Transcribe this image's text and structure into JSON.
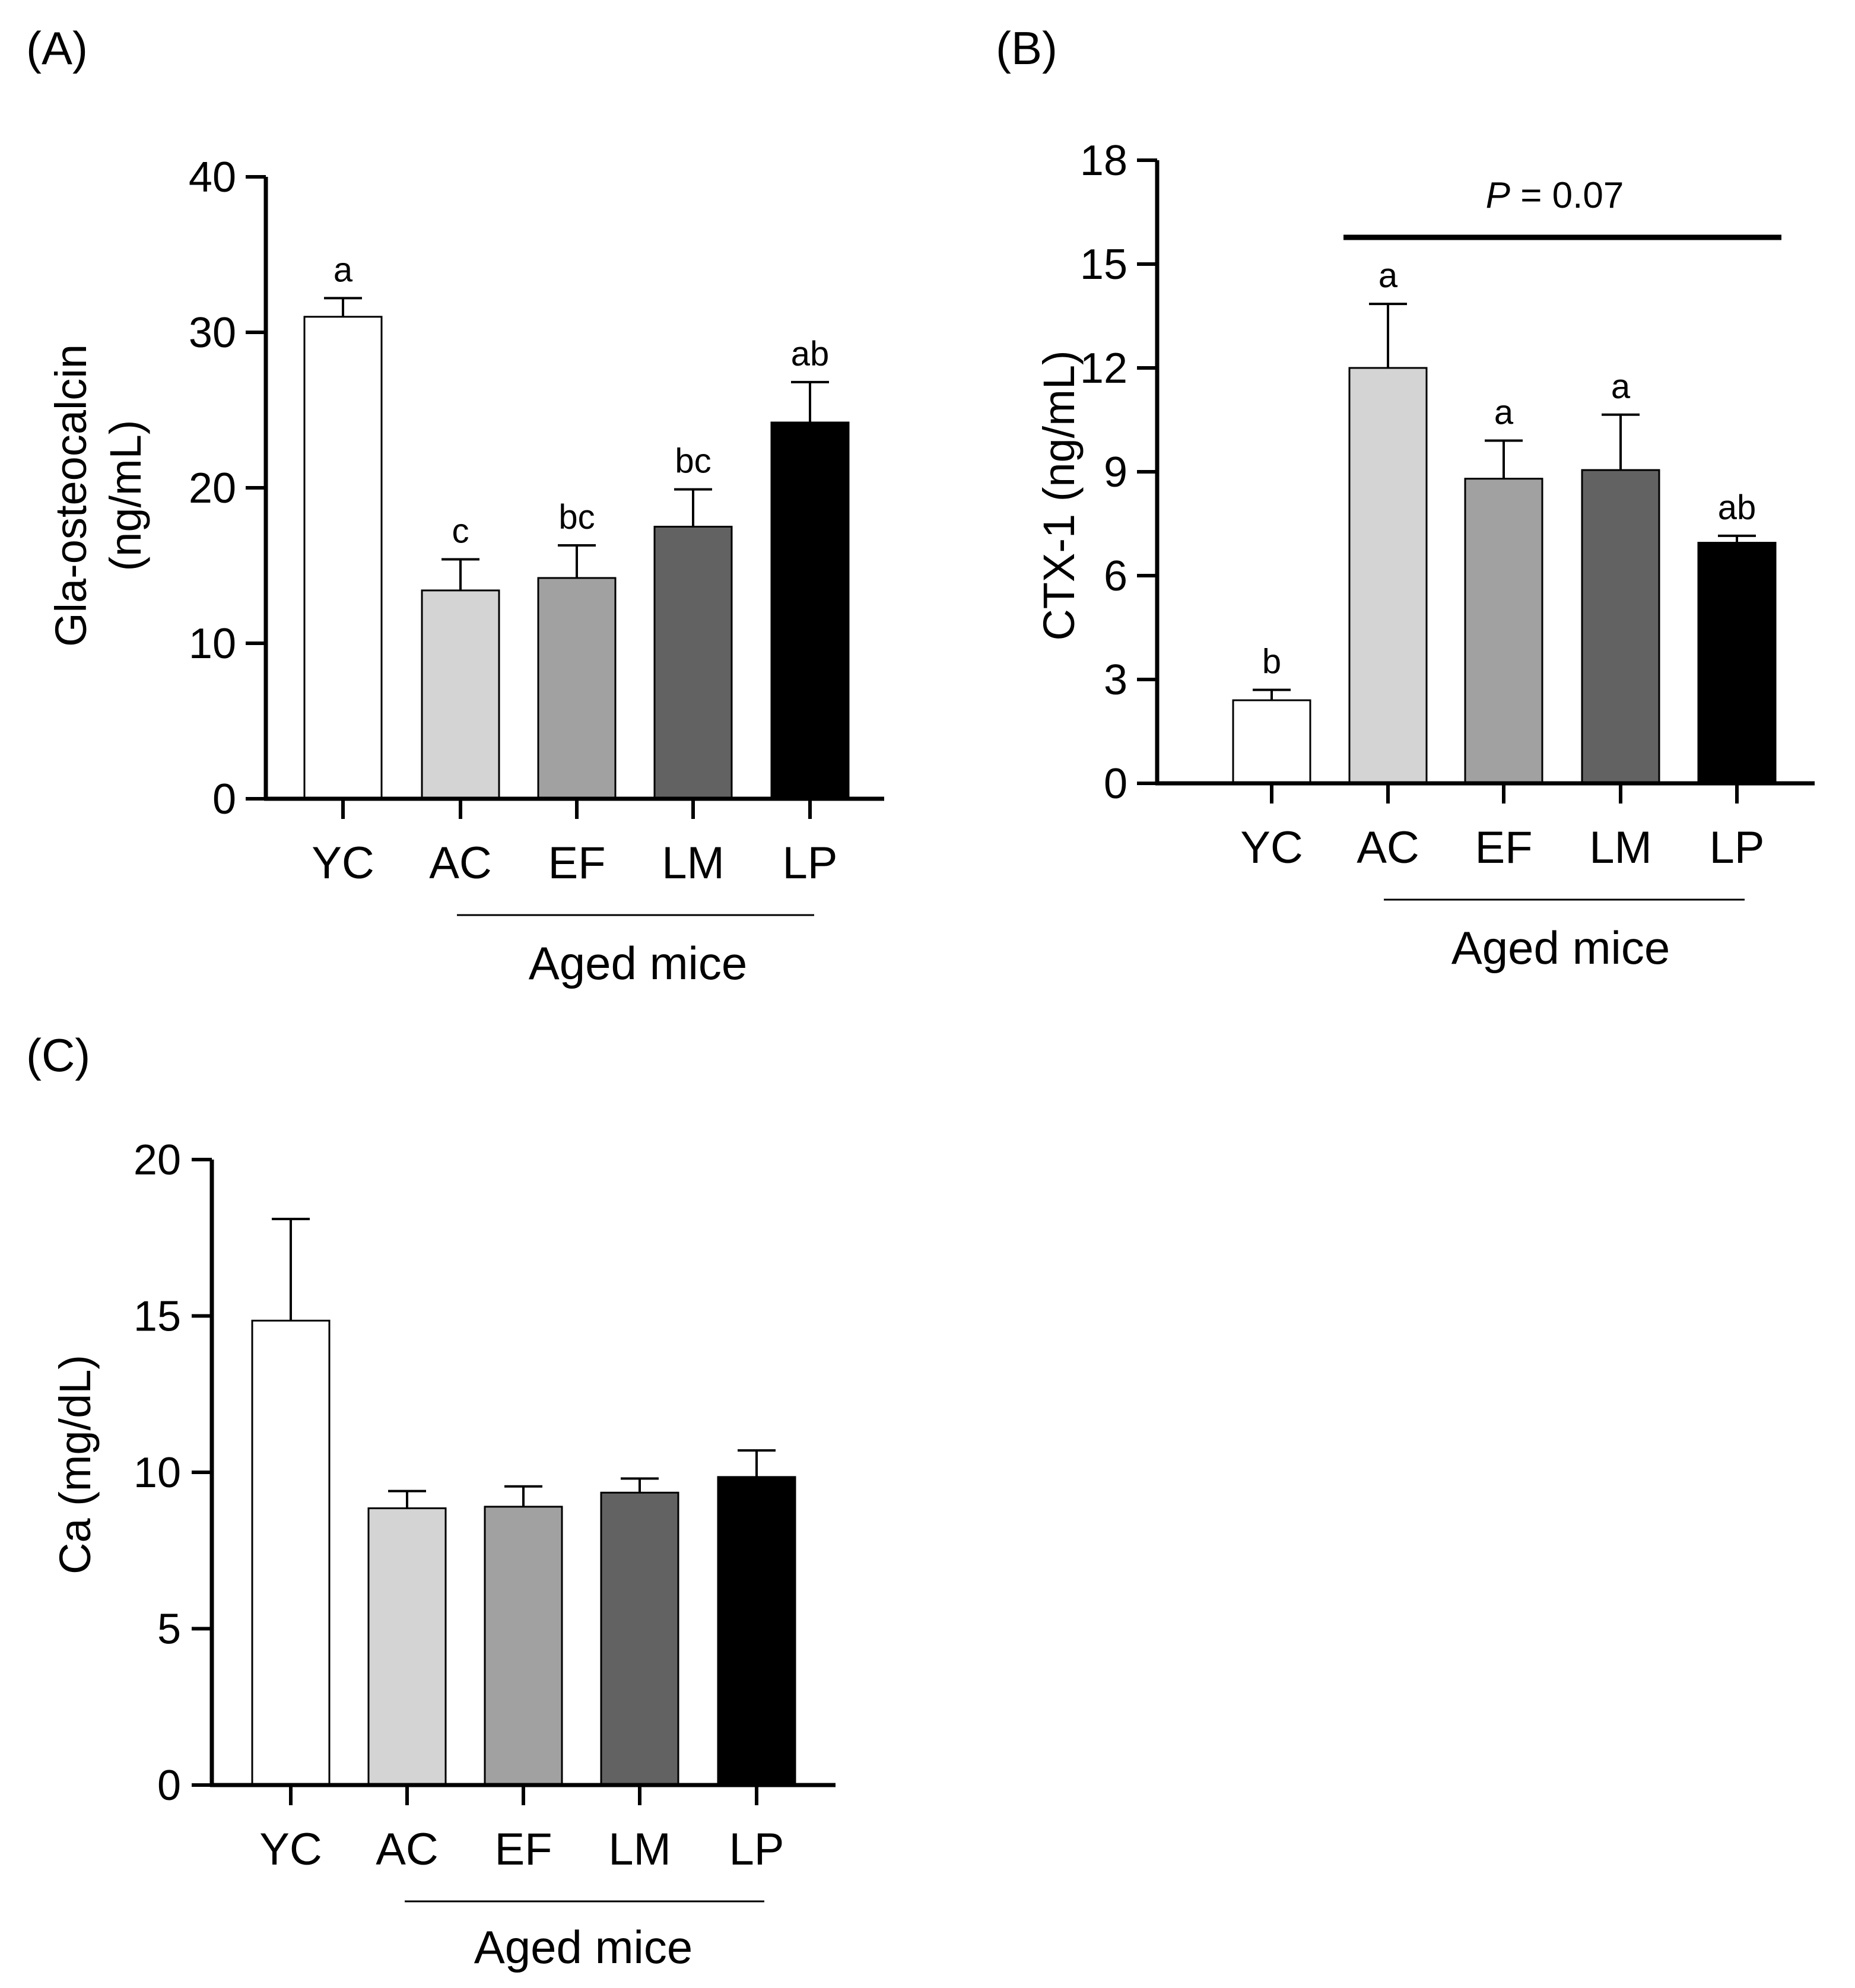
{
  "chart_data": [
    {
      "panel": "(A)",
      "type": "bar",
      "ylabel_line1": "Gla-osteocalcin",
      "ylabel_line2": "(ng/mL)",
      "ylim": [
        0,
        40
      ],
      "yticks": [
        0,
        10,
        20,
        30,
        40
      ],
      "categories": [
        "YC",
        "AC",
        "EF",
        "LM",
        "LP"
      ],
      "values": [
        31.0,
        13.4,
        14.2,
        17.5,
        24.2
      ],
      "errors": [
        1.2,
        2.0,
        2.1,
        2.4,
        2.6
      ],
      "fills": [
        "#ffffff",
        "#d4d4d4",
        "#a1a1a1",
        "#626262",
        "#000000"
      ],
      "labels": [
        "a",
        "c",
        "bc",
        "bc",
        "ab"
      ],
      "group_label": "Aged mice"
    },
    {
      "panel": "(B)",
      "type": "bar",
      "ylabel": "CTX-1 (ng/mL)",
      "ylim": [
        0,
        18
      ],
      "yticks": [
        0,
        3,
        6,
        9,
        12,
        15,
        18
      ],
      "categories": [
        "YC",
        "AC",
        "EF",
        "LM",
        "LP"
      ],
      "values": [
        2.4,
        12.0,
        8.8,
        9.05,
        6.95
      ],
      "errors": [
        0.3,
        1.85,
        1.1,
        1.6,
        0.2
      ],
      "fills": [
        "#ffffff",
        "#d4d4d4",
        "#a1a1a1",
        "#626262",
        "#000000"
      ],
      "labels": [
        "b",
        "a",
        "a",
        "a",
        "ab"
      ],
      "significance": {
        "p_italic": "P",
        "p_rest": " = 0.07",
        "from": "AC",
        "to": "LP"
      },
      "group_label": "Aged mice"
    },
    {
      "panel": "(C)",
      "type": "bar",
      "ylabel": "Ca (mg/dL)",
      "ylim": [
        0,
        20
      ],
      "yticks": [
        0,
        5,
        10,
        15,
        20
      ],
      "categories": [
        "YC",
        "AC",
        "EF",
        "LM",
        "LP"
      ],
      "values": [
        14.85,
        8.85,
        8.9,
        9.35,
        9.85
      ],
      "errors": [
        3.25,
        0.55,
        0.65,
        0.45,
        0.85
      ],
      "fills": [
        "#ffffff",
        "#d4d4d4",
        "#a1a1a1",
        "#626262",
        "#000000"
      ],
      "group_label": "Aged mice"
    }
  ]
}
